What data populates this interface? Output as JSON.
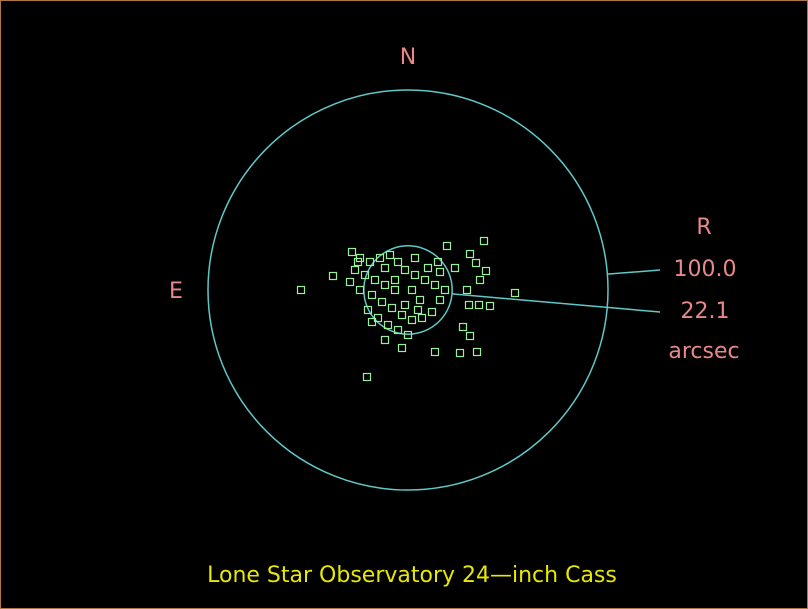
{
  "chart_data": {
    "type": "scatter",
    "title": "Lone Star Observatory 24—inch Cass",
    "north_label": "N",
    "east_label": "E",
    "radius_heading": "R",
    "unit_label": "arcsec",
    "circles": [
      {
        "radius": 100,
        "label": "100.0",
        "color": "#5fc8c8"
      },
      {
        "radius": 22.1,
        "label": "22.1",
        "color": "#5fc8c8"
      }
    ],
    "point_color": "#98f098",
    "title_color": "#e8e800",
    "label_color": "#e88888",
    "x": [
      -53.5,
      -37.5,
      -20.5,
      53.5,
      38,
      19.5,
      31,
      34,
      39,
      36,
      41,
      35.5,
      30.5,
      27.5,
      31,
      34.5,
      26,
      13.5,
      -3,
      23.5,
      29.5,
      -28,
      -24,
      -19,
      -14,
      -9,
      -5,
      -1.5,
      3.5,
      8.5,
      13.5,
      -26.5,
      -21.5,
      -16.5,
      -11.5,
      -6.5,
      -18,
      -13,
      -8,
      -3,
      2,
      7,
      12,
      16,
      18.5,
      -20,
      -15,
      -10,
      -5,
      0,
      -24,
      -29,
      6,
      10,
      15,
      3.5,
      -6.5,
      -11.5,
      2,
      -1.5,
      -18,
      -11.5,
      5,
      16,
      -25
    ],
    "values": [
      0,
      7,
      -43.5,
      -1.5,
      24.5,
      22,
      18,
      13.5,
      9.5,
      5,
      -8,
      -7.5,
      -7.5,
      -18.5,
      -23,
      -31,
      -31.5,
      -31,
      -29,
      11,
      0,
      19,
      16,
      14,
      16,
      17.5,
      14,
      10,
      7.5,
      5,
      2.5,
      10,
      7.5,
      5,
      2.5,
      0,
      -2.5,
      -6,
      -9,
      -12.5,
      -15,
      -14,
      -11,
      -5,
      0,
      -10,
      -14,
      -17.5,
      -20,
      -22.5,
      0,
      4,
      -5,
      11,
      14,
      16,
      5,
      11,
      0,
      -7.5,
      -16,
      -25,
      -10,
      9,
      14
    ]
  }
}
